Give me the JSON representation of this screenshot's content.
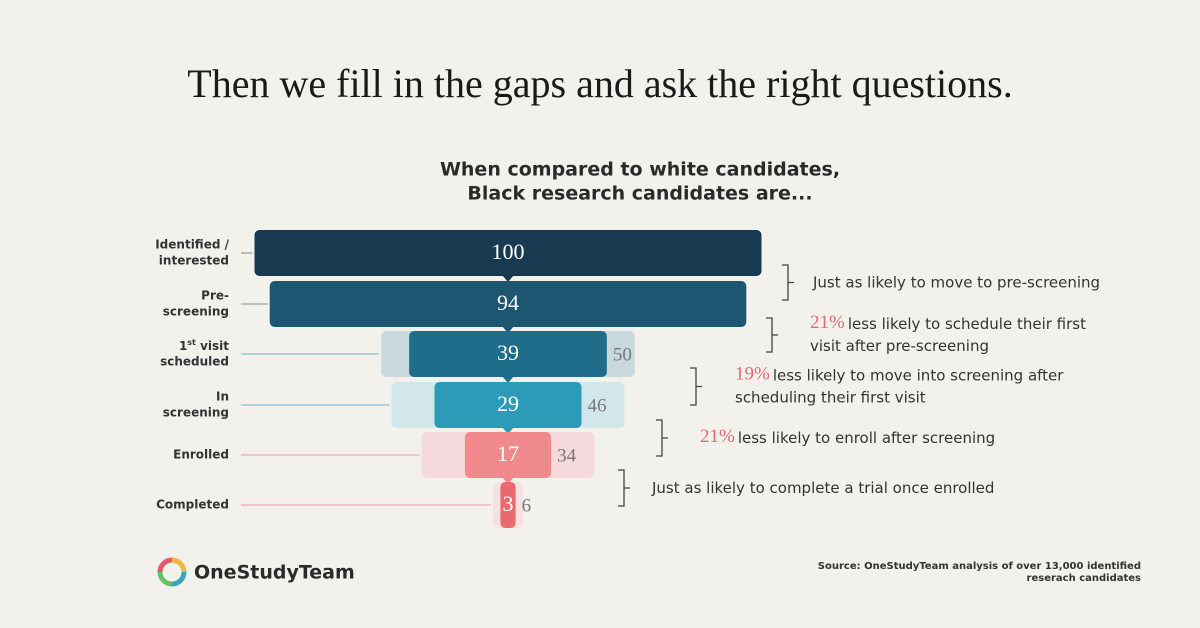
{
  "chart_data": {
    "type": "funnel",
    "title": "Then we fill in the gaps and ask the right questions.",
    "subtitle": [
      "When compared to white candidates,",
      "Black research candidates are..."
    ],
    "categories": [
      [
        "Identified /",
        "interested"
      ],
      [
        "Pre-",
        "screening"
      ],
      [
        "1",
        "st",
        " visit",
        "scheduled"
      ],
      [
        "In",
        "screening"
      ],
      [
        "Enrolled"
      ],
      [
        "Completed"
      ]
    ],
    "series": [
      {
        "colors": [
          "#173a50",
          "#1d5670",
          "#1f6d8b",
          "#2c9bb8",
          "#f08a8d",
          "#e86a70"
        ],
        "values": [
          100,
          94,
          39,
          29,
          17,
          3
        ]
      },
      {
        "colors": [
          "#c9d8dd",
          "#c9d8dd",
          "#c9d8dd",
          "#d2e7ec",
          "#f6d9dc",
          "#f9e1e2"
        ],
        "values": [
          null,
          null,
          50,
          46,
          34,
          6
        ]
      }
    ],
    "annotations": [
      {
        "lines": [
          "Just as likely to move to pre-screening"
        ]
      },
      {
        "highlight": "21%",
        "lines": [
          "less likely to schedule their first",
          "visit after pre-screening"
        ]
      },
      {
        "highlight": "19%",
        "lines": [
          "less likely to move into screening after",
          "scheduling their first visit"
        ]
      },
      {
        "highlight": "21%",
        "lines": [
          "less likely to enroll after screening"
        ]
      },
      {
        "lines": [
          "Just as likely to complete a trial once enrolled"
        ]
      }
    ],
    "source": [
      "Source: OneStudyTeam analysis of over 13,000 identified",
      "reserach candidates"
    ],
    "logo": "OneStudyTeam"
  }
}
